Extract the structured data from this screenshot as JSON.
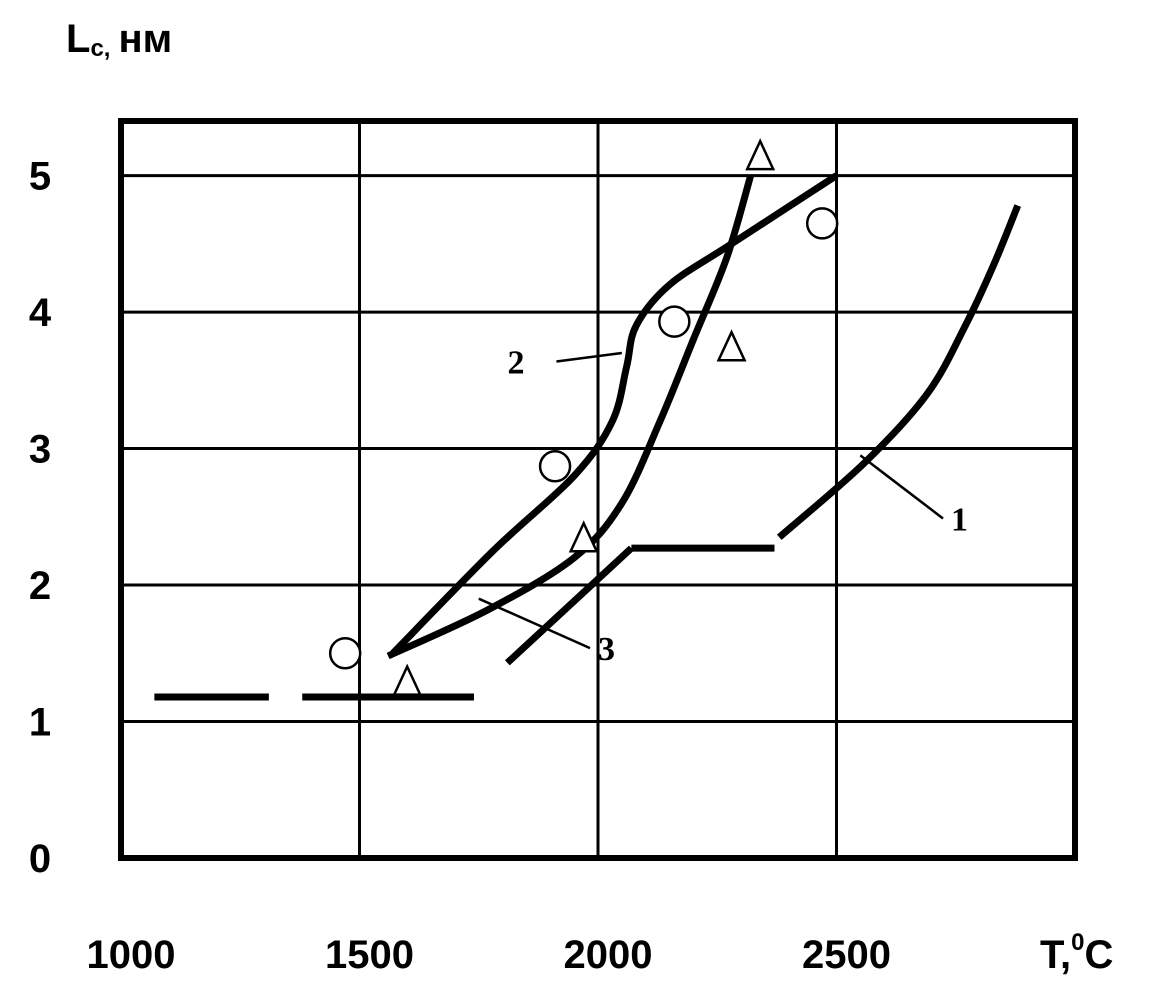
{
  "chart_data": {
    "type": "line",
    "xlabel": "T,",
    "xlabel_unit": "0",
    "xlabel_unit_tail": "C",
    "ylabel_main": "L",
    "ylabel_sub": "c,",
    "ylabel_unit": "нм",
    "xlim": [
      1000,
      3000
    ],
    "ylim": [
      0,
      5.4
    ],
    "x_ticks": [
      1000,
      1500,
      2000,
      2500
    ],
    "x_tick_labels": [
      "1000",
      "1500",
      "2000",
      "2500"
    ],
    "y_ticks": [
      0,
      1,
      2,
      3,
      4,
      5
    ],
    "y_tick_labels": [
      "0",
      "1",
      "2",
      "3",
      "4",
      "5"
    ],
    "x_grid": [
      1500,
      2000,
      2500
    ],
    "y_grid": [
      1,
      2,
      3,
      4,
      5
    ],
    "grid": true,
    "series": [
      {
        "name": "1",
        "label_at": [
          2550,
          2.95
        ],
        "label_pos": [
          2740,
          2.4
        ],
        "segments": [
          [
            [
              1070,
              1.18
            ],
            [
              1310,
              1.18
            ]
          ],
          [
            [
              1380,
              1.18
            ],
            [
              1740,
              1.18
            ]
          ],
          [
            [
              1810,
              1.43
            ],
            [
              2070,
              2.27
            ]
          ],
          [
            [
              2070,
              2.27
            ],
            [
              2370,
              2.27
            ]
          ],
          [
            [
              2380,
              2.35
            ],
            [
              2560,
              2.9
            ],
            [
              2690,
              3.4
            ],
            [
              2770,
              3.9
            ],
            [
              2830,
              4.35
            ],
            [
              2880,
              4.78
            ]
          ]
        ]
      },
      {
        "name": "2",
        "label_at": [
          2050,
          3.7
        ],
        "label_pos": [
          1850,
          3.55
        ],
        "segments": [
          [
            [
              1570,
              1.5
            ],
            [
              1780,
              2.25
            ],
            [
              1950,
              2.8
            ],
            [
              2030,
              3.2
            ],
            [
              2060,
              3.6
            ],
            [
              2080,
              3.9
            ],
            [
              2150,
              4.2
            ],
            [
              2280,
              4.5
            ],
            [
              2500,
              5.0
            ]
          ]
        ]
      },
      {
        "name": "3",
        "label_at": [
          1750,
          1.9
        ],
        "label_pos": [
          2000,
          1.45
        ],
        "segments": [
          [
            [
              1560,
              1.48
            ],
            [
              1770,
              1.82
            ],
            [
              1950,
              2.2
            ],
            [
              2050,
              2.6
            ],
            [
              2130,
              3.2
            ],
            [
              2200,
              3.8
            ],
            [
              2270,
              4.4
            ],
            [
              2320,
              5.0
            ]
          ]
        ]
      }
    ],
    "points": [
      {
        "marker": "circle",
        "x": 1470,
        "y": 1.5
      },
      {
        "marker": "circle",
        "x": 1910,
        "y": 2.87
      },
      {
        "marker": "circle",
        "x": 2160,
        "y": 3.93
      },
      {
        "marker": "circle",
        "x": 2470,
        "y": 4.65
      },
      {
        "marker": "triangle",
        "x": 1600,
        "y": 1.3
      },
      {
        "marker": "triangle",
        "x": 1970,
        "y": 2.35
      },
      {
        "marker": "triangle",
        "x": 2280,
        "y": 3.75
      },
      {
        "marker": "triangle",
        "x": 2340,
        "y": 5.15
      }
    ]
  }
}
